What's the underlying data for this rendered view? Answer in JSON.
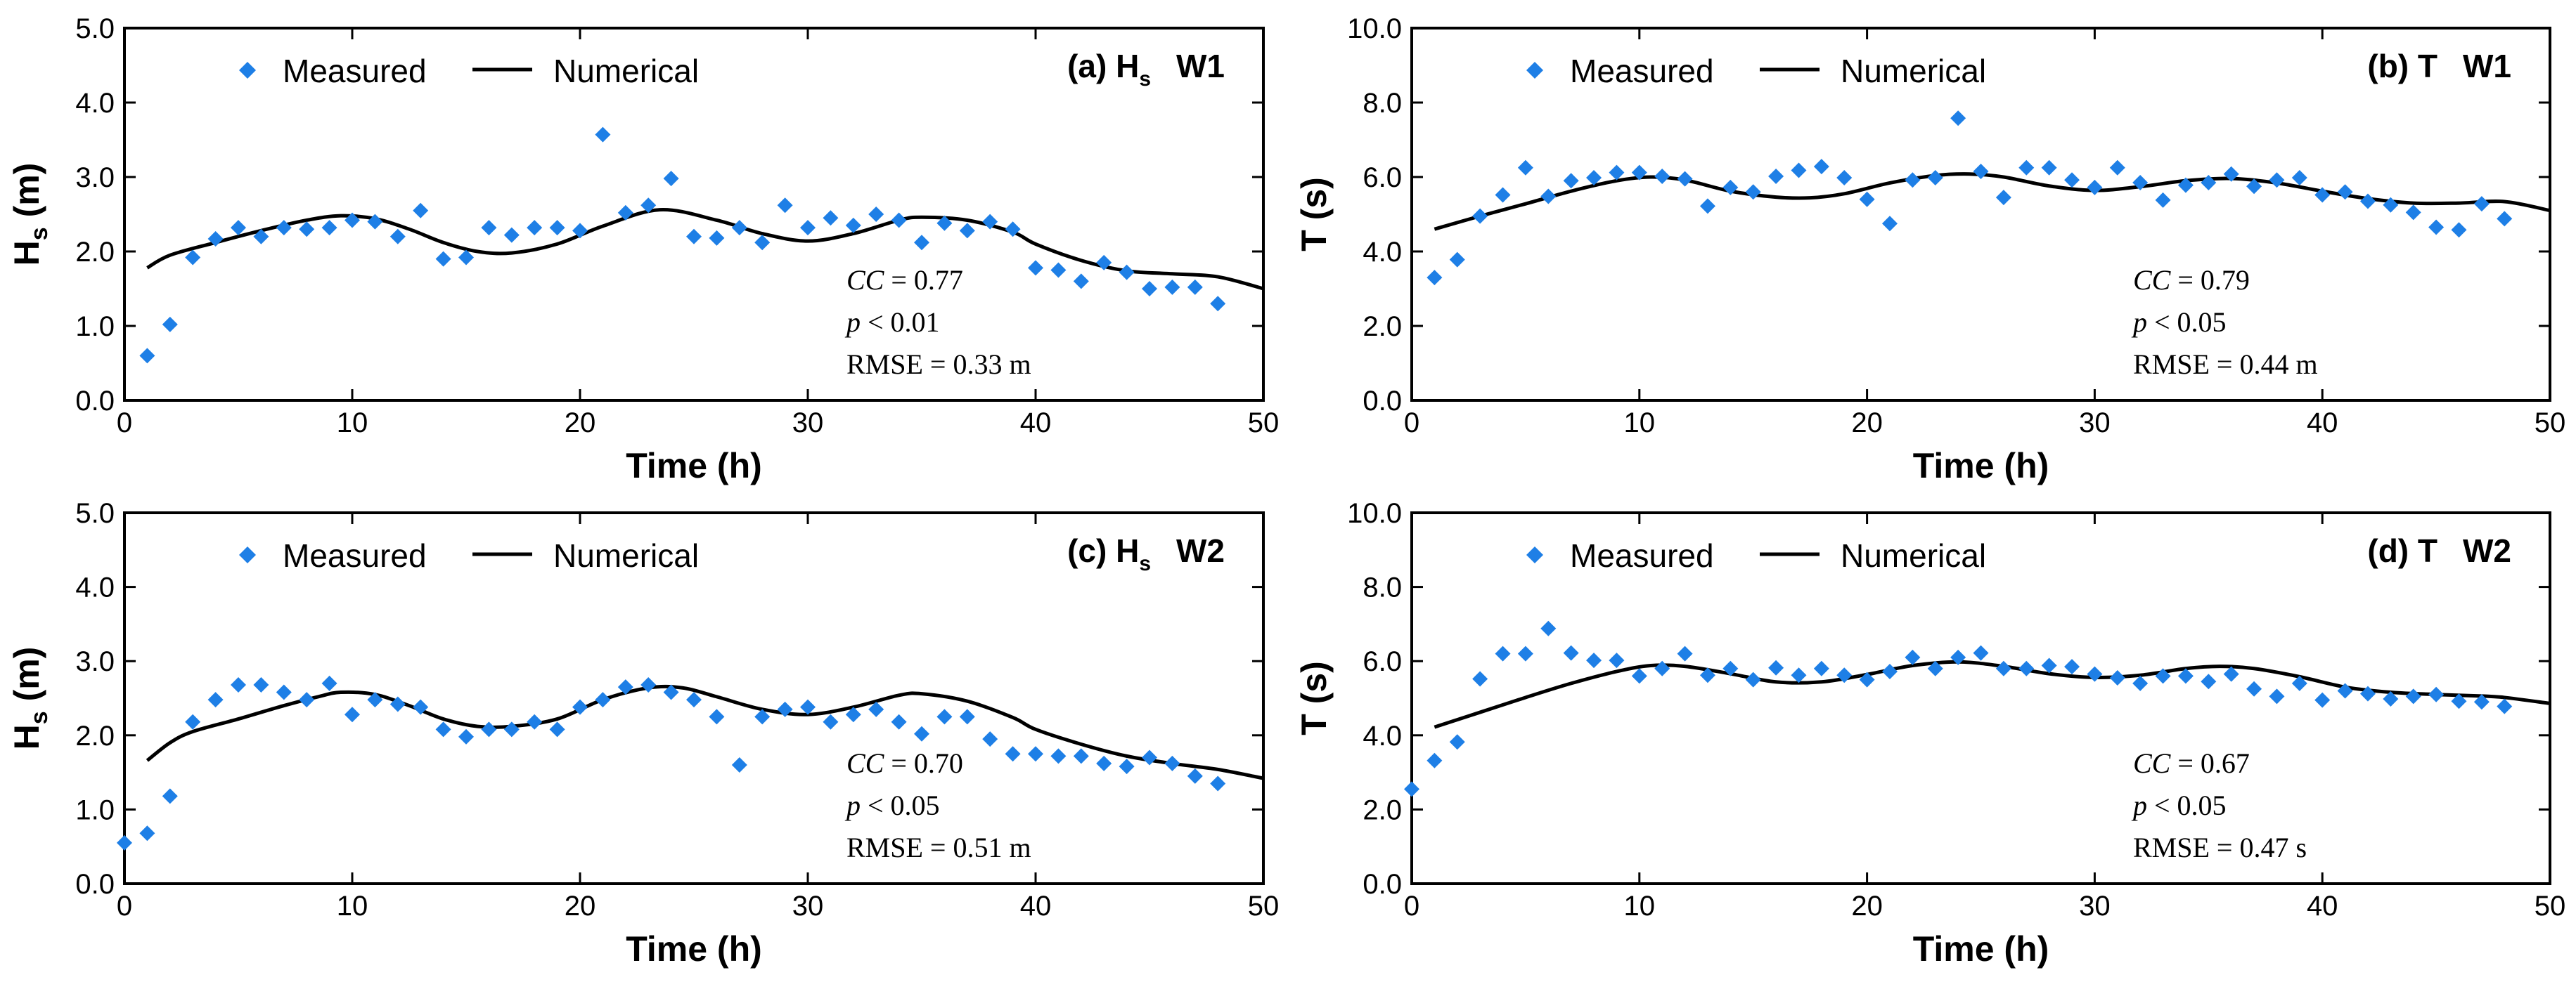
{
  "chart_data": [
    {
      "type": "scatter",
      "panel": "(a) Hs W1",
      "title": "(a) H",
      "title_sub": "s",
      "title_tail": "W1",
      "xlabel": "Time (h)",
      "ylabel": "H",
      "ylabel_sub": "s",
      "ylabel_tail": " (m)",
      "xlim": [
        0,
        50
      ],
      "ylim": [
        0,
        5
      ],
      "xticks": [
        "0",
        "10",
        "20",
        "30",
        "40",
        "50"
      ],
      "yticks": [
        "0.0",
        "1.0",
        "2.0",
        "3.0",
        "4.0",
        "5.0"
      ],
      "legend": [
        "Measured",
        "Numerical"
      ],
      "legend_position": "top-left",
      "stats": {
        "cc": "CC = 0.77",
        "p": "p < 0.01",
        "rmse": "RMSE = 0.33 m"
      },
      "series": [
        {
          "name": "Measured",
          "style": "markers",
          "x": [
            1,
            2,
            3,
            4,
            5,
            6,
            7,
            8,
            9,
            10,
            11,
            12,
            13,
            14,
            15,
            16,
            17,
            18,
            19,
            20,
            21,
            22,
            23,
            24,
            25,
            26,
            27,
            28,
            29,
            30,
            31,
            32,
            33,
            34,
            35,
            36,
            37,
            38,
            39,
            40,
            41,
            42,
            43,
            44,
            45,
            46,
            47,
            48
          ],
          "y": [
            0.6,
            1.02,
            1.92,
            2.17,
            2.32,
            2.2,
            2.32,
            2.3,
            2.32,
            2.42,
            2.4,
            2.2,
            2.55,
            1.9,
            1.92,
            2.32,
            2.22,
            2.32,
            2.32,
            2.28,
            3.57,
            2.52,
            2.62,
            2.98,
            2.2,
            2.18,
            2.32,
            2.12,
            2.62,
            2.32,
            2.45,
            2.35,
            2.5,
            2.42,
            2.12,
            2.38,
            2.28,
            2.4,
            2.3,
            1.78,
            1.75,
            1.6,
            1.85,
            1.72,
            1.5,
            1.52,
            1.52,
            1.3
          ]
        },
        {
          "name": "Numerical",
          "style": "line",
          "x": [
            1,
            2,
            4,
            6,
            8,
            9.5,
            11,
            12.5,
            14,
            15.5,
            17,
            19,
            21,
            23.5,
            26,
            28,
            30,
            32,
            34,
            35,
            37,
            39,
            40,
            42,
            44,
            46,
            48,
            50
          ],
          "y": [
            1.78,
            1.95,
            2.12,
            2.28,
            2.42,
            2.48,
            2.44,
            2.3,
            2.12,
            2.0,
            1.98,
            2.1,
            2.34,
            2.56,
            2.42,
            2.24,
            2.14,
            2.24,
            2.42,
            2.46,
            2.42,
            2.26,
            2.1,
            1.88,
            1.74,
            1.7,
            1.66,
            1.5
          ]
        }
      ]
    },
    {
      "type": "scatter",
      "panel": "(b) T W1",
      "title": "(b) T",
      "title_sub": "",
      "title_tail": "W1",
      "xlabel": "Time (h)",
      "ylabel": "T",
      "ylabel_sub": "",
      "ylabel_tail": " (s)",
      "xlim": [
        0,
        50
      ],
      "ylim": [
        0,
        10
      ],
      "xticks": [
        "0",
        "10",
        "20",
        "30",
        "40",
        "50"
      ],
      "yticks": [
        "0.0",
        "2.0",
        "4.0",
        "6.0",
        "8.0",
        "10.0"
      ],
      "legend": [
        "Measured",
        "Numerical"
      ],
      "legend_position": "top-left",
      "stats": {
        "cc": "CC = 0.79",
        "p": "p < 0.05",
        "rmse": "RMSE = 0.44 m"
      },
      "series": [
        {
          "name": "Measured",
          "style": "markers",
          "x": [
            1,
            2,
            3,
            4,
            5,
            6,
            7,
            8,
            9,
            10,
            11,
            12,
            13,
            14,
            15,
            16,
            17,
            18,
            19,
            20,
            21,
            22,
            23,
            24,
            25,
            26,
            27,
            28,
            29,
            30,
            31,
            32,
            33,
            34,
            35,
            36,
            37,
            38,
            39,
            40,
            41,
            42,
            43,
            44,
            45,
            46,
            47,
            48
          ],
          "y": [
            3.3,
            3.78,
            4.95,
            5.52,
            6.25,
            5.48,
            5.9,
            5.98,
            6.12,
            6.12,
            6.02,
            5.95,
            5.22,
            5.72,
            5.6,
            6.02,
            6.18,
            6.28,
            5.98,
            5.4,
            4.75,
            5.92,
            5.98,
            7.58,
            6.15,
            5.45,
            6.25,
            6.25,
            5.92,
            5.72,
            6.25,
            5.85,
            5.38,
            5.78,
            5.85,
            6.08,
            5.75,
            5.92,
            5.98,
            5.52,
            5.6,
            5.35,
            5.25,
            5.05,
            4.65,
            4.58,
            5.28,
            4.88
          ]
        },
        {
          "name": "Numerical",
          "style": "line",
          "x": [
            1,
            3,
            5,
            7,
            9,
            10.5,
            12,
            14,
            16,
            17.5,
            19,
            21,
            23,
            24.5,
            26,
            28,
            30,
            32,
            34,
            36,
            38,
            40,
            42,
            44,
            46,
            48,
            50
          ],
          "y": [
            4.6,
            4.95,
            5.28,
            5.62,
            5.9,
            6.0,
            5.92,
            5.62,
            5.46,
            5.44,
            5.55,
            5.84,
            6.04,
            6.08,
            6.0,
            5.76,
            5.64,
            5.74,
            5.9,
            5.96,
            5.84,
            5.62,
            5.42,
            5.3,
            5.3,
            5.34,
            5.1
          ]
        }
      ]
    },
    {
      "type": "scatter",
      "panel": "(c) Hs W2",
      "title": "(c) H",
      "title_sub": "s",
      "title_tail": "W2",
      "xlabel": "Time (h)",
      "ylabel": "H",
      "ylabel_sub": "s",
      "ylabel_tail": " (m)",
      "xlim": [
        0,
        50
      ],
      "ylim": [
        0,
        5
      ],
      "xticks": [
        "0",
        "10",
        "20",
        "30",
        "40",
        "50"
      ],
      "yticks": [
        "0.0",
        "1.0",
        "2.0",
        "3.0",
        "4.0",
        "5.0"
      ],
      "legend": [
        "Measured",
        "Numerical"
      ],
      "legend_position": "top-left",
      "stats": {
        "cc": "CC = 0.70",
        "p": "p < 0.05",
        "rmse": "RMSE = 0.51 m"
      },
      "series": [
        {
          "name": "Measured",
          "style": "markers",
          "x": [
            0,
            1,
            2,
            3,
            4,
            5,
            6,
            7,
            8,
            9,
            10,
            11,
            12,
            13,
            14,
            15,
            16,
            17,
            18,
            19,
            20,
            21,
            22,
            23,
            24,
            25,
            26,
            27,
            28,
            29,
            30,
            31,
            32,
            33,
            34,
            35,
            36,
            37,
            38,
            39,
            40,
            41,
            42,
            43,
            44,
            45,
            46,
            47,
            48
          ],
          "y": [
            0.55,
            0.68,
            1.18,
            2.18,
            2.48,
            2.68,
            2.68,
            2.58,
            2.48,
            2.7,
            2.28,
            2.48,
            2.42,
            2.38,
            2.08,
            1.98,
            2.08,
            2.08,
            2.18,
            2.08,
            2.38,
            2.48,
            2.65,
            2.68,
            2.58,
            2.48,
            2.25,
            1.6,
            2.25,
            2.35,
            2.38,
            2.18,
            2.28,
            2.35,
            2.18,
            2.02,
            2.25,
            2.25,
            1.95,
            1.75,
            1.75,
            1.72,
            1.72,
            1.62,
            1.58,
            1.7,
            1.62,
            1.45,
            1.35
          ]
        },
        {
          "name": "Numerical",
          "style": "line",
          "x": [
            1,
            2,
            3,
            5,
            7,
            8.5,
            9.5,
            11,
            12.5,
            14,
            15.5,
            17,
            19,
            21,
            23,
            24.5,
            26,
            28,
            30,
            32,
            34,
            35,
            37,
            39,
            40,
            42,
            44,
            46,
            48,
            50
          ],
          "y": [
            1.66,
            1.9,
            2.05,
            2.22,
            2.4,
            2.52,
            2.58,
            2.55,
            2.4,
            2.22,
            2.12,
            2.12,
            2.22,
            2.48,
            2.64,
            2.64,
            2.52,
            2.35,
            2.28,
            2.38,
            2.54,
            2.56,
            2.46,
            2.24,
            2.08,
            1.88,
            1.72,
            1.62,
            1.54,
            1.42
          ]
        }
      ]
    },
    {
      "type": "scatter",
      "panel": "(d) T W2",
      "title": "(d) T",
      "title_sub": "",
      "title_tail": "W2",
      "xlabel": "Time (h)",
      "ylabel": "T",
      "ylabel_sub": "",
      "ylabel_tail": " (s)",
      "xlim": [
        0,
        50
      ],
      "ylim": [
        0,
        10
      ],
      "xticks": [
        "0",
        "10",
        "20",
        "30",
        "40",
        "50"
      ],
      "yticks": [
        "0.0",
        "2.0",
        "4.0",
        "6.0",
        "8.0",
        "10.0"
      ],
      "legend": [
        "Measured",
        "Numerical"
      ],
      "legend_position": "top-left",
      "stats": {
        "cc": "CC = 0.67",
        "p": "p < 0.05",
        "rmse": "RMSE = 0.47 s"
      },
      "series": [
        {
          "name": "Measured",
          "style": "markers",
          "x": [
            0,
            1,
            2,
            3,
            4,
            5,
            6,
            7,
            8,
            9,
            10,
            11,
            12,
            13,
            14,
            15,
            16,
            17,
            18,
            19,
            20,
            21,
            22,
            23,
            24,
            25,
            26,
            27,
            28,
            29,
            30,
            31,
            32,
            33,
            34,
            35,
            36,
            37,
            38,
            39,
            40,
            41,
            42,
            43,
            44,
            45,
            46,
            47,
            48
          ],
          "y": [
            2.55,
            3.32,
            3.82,
            5.52,
            6.2,
            6.2,
            6.88,
            6.22,
            6.02,
            6.02,
            5.6,
            5.8,
            6.2,
            5.62,
            5.8,
            5.5,
            5.82,
            5.62,
            5.8,
            5.62,
            5.5,
            5.72,
            6.1,
            5.8,
            6.1,
            6.22,
            5.8,
            5.8,
            5.88,
            5.85,
            5.65,
            5.55,
            5.4,
            5.6,
            5.6,
            5.45,
            5.65,
            5.25,
            5.05,
            5.4,
            4.95,
            5.2,
            5.12,
            4.98,
            5.05,
            5.1,
            4.92,
            4.9,
            4.78
          ]
        },
        {
          "name": "Numerical",
          "style": "line",
          "x": [
            1,
            3,
            5,
            7,
            9,
            10.5,
            12,
            14,
            16,
            18,
            20,
            22,
            24,
            26,
            28,
            30,
            32,
            34,
            35.5,
            37,
            39,
            41,
            43,
            45,
            47,
            48,
            50
          ],
          "y": [
            4.22,
            4.62,
            5.02,
            5.4,
            5.72,
            5.88,
            5.86,
            5.66,
            5.44,
            5.44,
            5.64,
            5.88,
            5.98,
            5.86,
            5.66,
            5.56,
            5.62,
            5.8,
            5.86,
            5.8,
            5.58,
            5.3,
            5.16,
            5.1,
            5.06,
            5.02,
            4.86
          ]
        }
      ]
    }
  ]
}
